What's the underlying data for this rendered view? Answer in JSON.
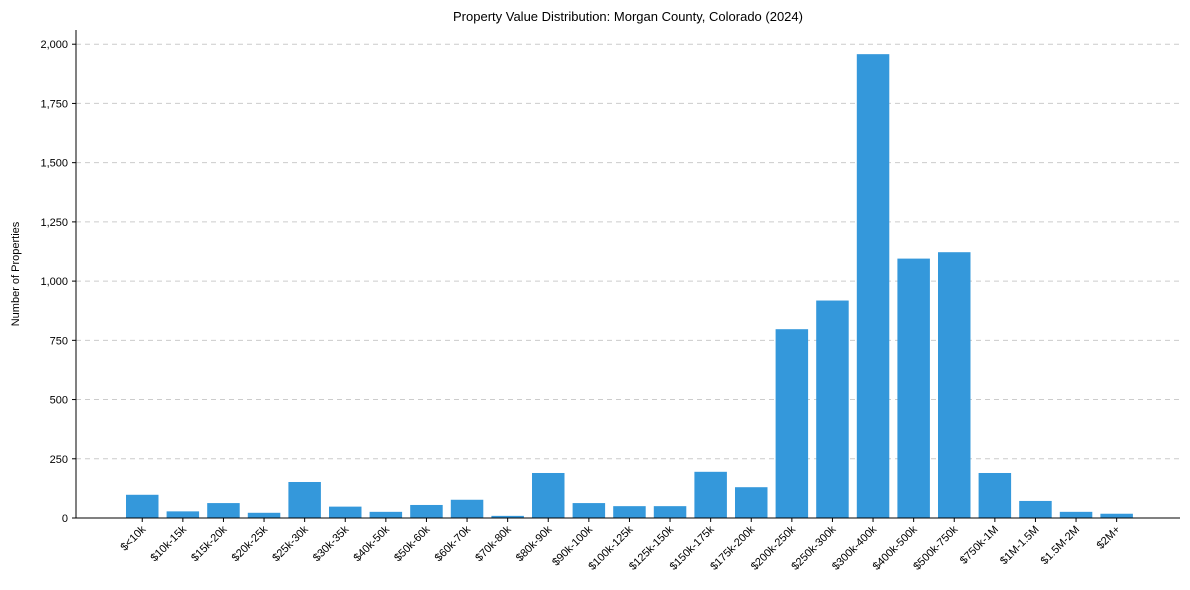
{
  "chart_data": {
    "type": "bar",
    "title": "Property Value Distribution: Morgan County, Colorado (2024)",
    "xlabel": "",
    "ylabel": "Number of Properties",
    "ylim": [
      0,
      2060
    ],
    "yticks": [
      0,
      250,
      500,
      750,
      1000,
      1250,
      1500,
      1750,
      2000
    ],
    "ytick_labels": [
      "0",
      "250",
      "500",
      "750",
      "1,000",
      "1,250",
      "1,500",
      "1,750",
      "2,000"
    ],
    "grid": "y-dashed",
    "bar_color": "#3498db",
    "categories": [
      "$<10k",
      "$10k-15k",
      "$15k-20k",
      "$20k-25k",
      "$25k-30k",
      "$30k-35k",
      "$40k-50k",
      "$50k-60k",
      "$60k-70k",
      "$70k-80k",
      "$80k-90k",
      "$90k-100k",
      "$100k-125k",
      "$125k-150k",
      "$150k-175k",
      "$175k-200k",
      "$200k-250k",
      "$250k-300k",
      "$300k-400k",
      "$400k-500k",
      "$500k-750k",
      "$750k-1M",
      "$1M-1.5M",
      "$1.5M-2M",
      "$2M+"
    ],
    "values": [
      98,
      28,
      63,
      22,
      152,
      48,
      26,
      55,
      77,
      9,
      190,
      63,
      50,
      50,
      195,
      130,
      797,
      918,
      1958,
      1095,
      1122,
      190,
      72,
      26,
      18
    ]
  }
}
